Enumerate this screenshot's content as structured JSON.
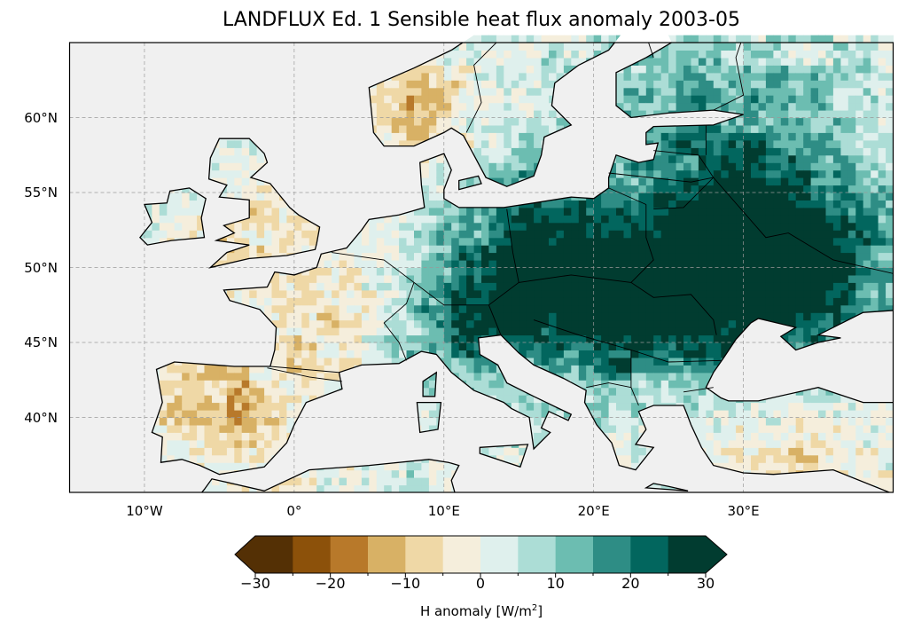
{
  "title": "LANDFLUX Ed. 1 Sensible heat flux anomaly 2003-05",
  "map": {
    "projection": "PlateCarree",
    "lon_range": [
      -15,
      40
    ],
    "lat_range": [
      35,
      65
    ],
    "gridlines": "dashed",
    "ocean_color": "#f0f0f0",
    "coastline_color": "#000000",
    "lat_ticks": [
      {
        "value": 60,
        "label": "60°N"
      },
      {
        "value": 55,
        "label": "55°N"
      },
      {
        "value": 50,
        "label": "50°N"
      },
      {
        "value": 45,
        "label": "45°N"
      },
      {
        "value": 40,
        "label": "40°N"
      }
    ],
    "lon_ticks": [
      {
        "value": -10,
        "label": "10°W"
      },
      {
        "value": 0,
        "label": "0°"
      },
      {
        "value": 10,
        "label": "10°E"
      },
      {
        "value": 20,
        "label": "20°E"
      },
      {
        "value": 30,
        "label": "30°E"
      }
    ]
  },
  "colorbar": {
    "label_text": "H anomaly [W/m",
    "label_sup": "2",
    "label_close": "]",
    "extend": "both",
    "levels": [
      -30,
      -25,
      -20,
      -15,
      -10,
      -5,
      0,
      5,
      10,
      15,
      20,
      25,
      30
    ],
    "colors": [
      "#543005",
      "#8c510a",
      "#b8792a",
      "#d8b165",
      "#efd8a6",
      "#f5eedc",
      "#dff0ed",
      "#acddd6",
      "#6cbdb1",
      "#2e8d85",
      "#02665e",
      "#013c30"
    ],
    "under_color": "#543005",
    "over_color": "#013c30",
    "ticks": [
      {
        "value": -30,
        "label": "−30"
      },
      {
        "value": -20,
        "label": "−20"
      },
      {
        "value": -10,
        "label": "−10"
      },
      {
        "value": 0,
        "label": "0"
      },
      {
        "value": 10,
        "label": "10"
      },
      {
        "value": 20,
        "label": "20"
      },
      {
        "value": 30,
        "label": "30"
      }
    ]
  }
}
